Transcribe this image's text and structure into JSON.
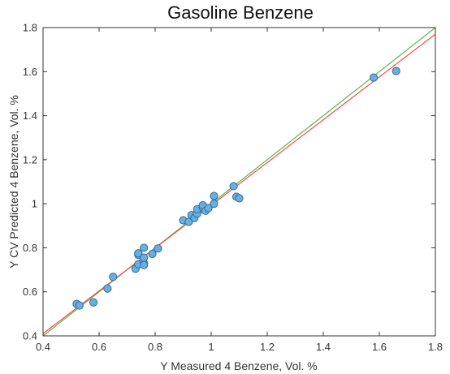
{
  "chart_data": {
    "type": "scatter",
    "title": "Gasoline Benzene",
    "xlabel": "Y Measured 4 Benzene, Vol. %",
    "ylabel": "Y CV Predicted 4 Benzene, Vol. %",
    "xlim": [
      0.4,
      1.8
    ],
    "ylim": [
      0.4,
      1.8
    ],
    "xticks": [
      "0.4",
      "0.6",
      "0.8",
      "1",
      "1.2",
      "1.4",
      "1.6",
      "1.8"
    ],
    "yticks": [
      "0.4",
      "0.6",
      "0.8",
      "1",
      "1.2",
      "1.4",
      "1.6",
      "1.8"
    ],
    "grid": false,
    "legend": "none",
    "colors": {
      "points_fill": "#6aaee0",
      "points_stroke": "#2f6f9f",
      "identity_line": "#5ab84a",
      "fit_line": "#ef4d4d"
    },
    "points": [
      {
        "x": 0.52,
        "y": 0.545
      },
      {
        "x": 0.53,
        "y": 0.538
      },
      {
        "x": 0.58,
        "y": 0.552
      },
      {
        "x": 0.63,
        "y": 0.615
      },
      {
        "x": 0.65,
        "y": 0.668
      },
      {
        "x": 0.73,
        "y": 0.705
      },
      {
        "x": 0.74,
        "y": 0.725
      },
      {
        "x": 0.74,
        "y": 0.768
      },
      {
        "x": 0.74,
        "y": 0.775
      },
      {
        "x": 0.76,
        "y": 0.73
      },
      {
        "x": 0.76,
        "y": 0.722
      },
      {
        "x": 0.76,
        "y": 0.755
      },
      {
        "x": 0.76,
        "y": 0.8
      },
      {
        "x": 0.79,
        "y": 0.772
      },
      {
        "x": 0.81,
        "y": 0.797
      },
      {
        "x": 0.9,
        "y": 0.925
      },
      {
        "x": 0.92,
        "y": 0.918
      },
      {
        "x": 0.93,
        "y": 0.948
      },
      {
        "x": 0.94,
        "y": 0.935
      },
      {
        "x": 0.95,
        "y": 0.955
      },
      {
        "x": 0.95,
        "y": 0.975
      },
      {
        "x": 0.97,
        "y": 0.982
      },
      {
        "x": 0.97,
        "y": 0.993
      },
      {
        "x": 0.98,
        "y": 0.968
      },
      {
        "x": 0.99,
        "y": 0.98
      },
      {
        "x": 1.01,
        "y": 1.0
      },
      {
        "x": 1.01,
        "y": 1.035
      },
      {
        "x": 1.08,
        "y": 1.08
      },
      {
        "x": 1.09,
        "y": 1.032
      },
      {
        "x": 1.1,
        "y": 1.025
      },
      {
        "x": 1.58,
        "y": 1.573
      },
      {
        "x": 1.66,
        "y": 1.603
      }
    ],
    "lines": [
      {
        "kind": "identity",
        "x": [
          0.4,
          1.8
        ],
        "y": [
          0.4,
          1.8
        ]
      },
      {
        "kind": "fit",
        "x": [
          0.4,
          1.8
        ],
        "y": [
          0.41,
          1.77
        ]
      }
    ]
  }
}
